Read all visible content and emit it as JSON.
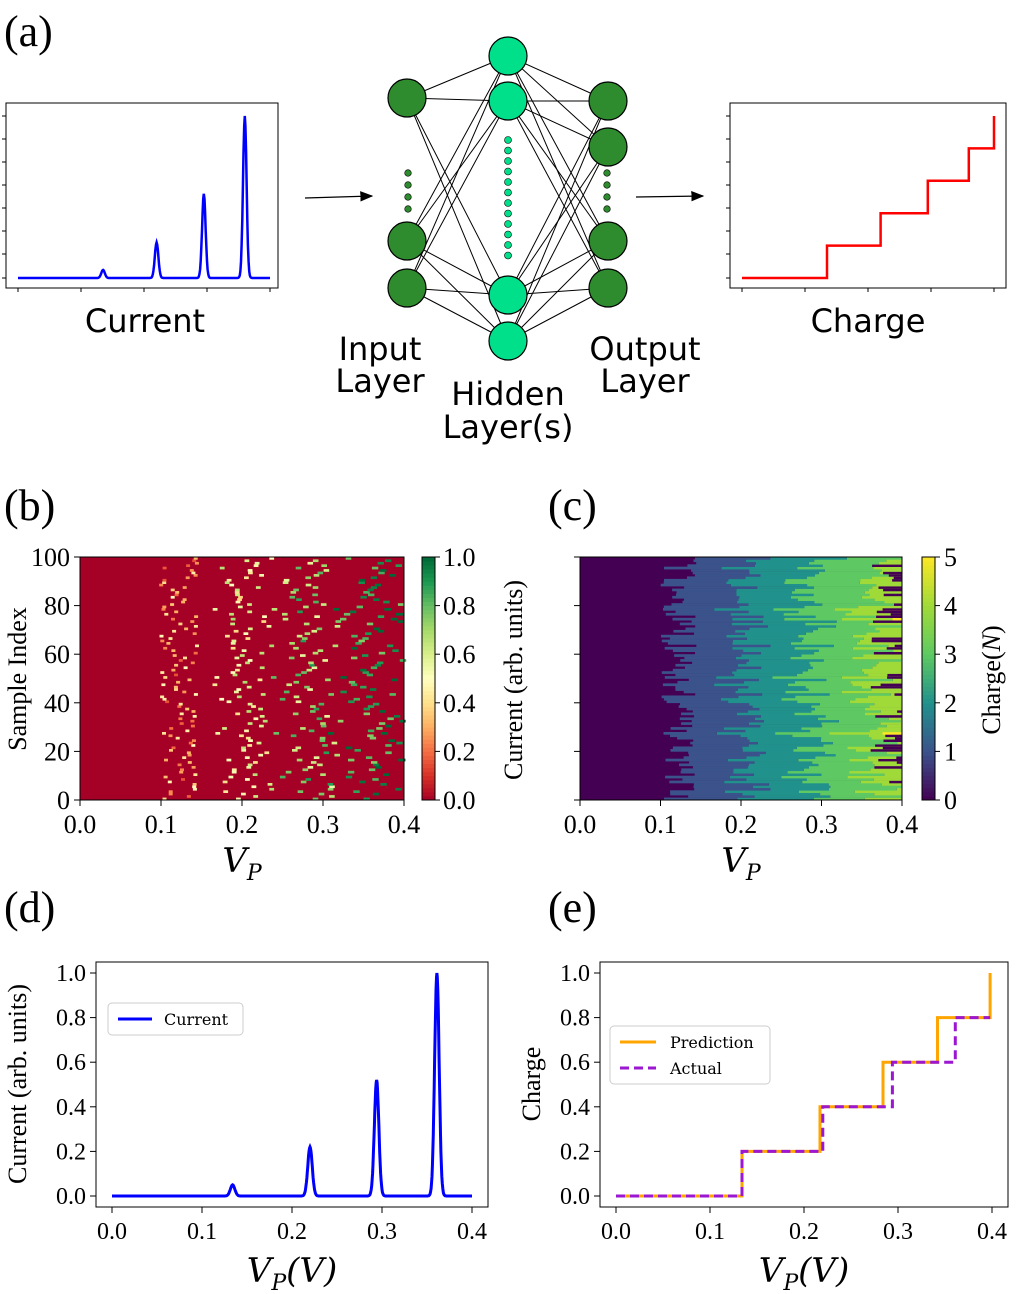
{
  "panel_a": {
    "label": "(a)",
    "input_caption": "Current",
    "output_caption": "Charge",
    "input_layer": [
      "Input",
      "Layer"
    ],
    "hidden_layer": [
      "Hidden",
      "Layer(s)"
    ],
    "output_layer": [
      "Output",
      "Layer"
    ],
    "colors": {
      "input_curve": "#0000ff",
      "output_curve": "#ff0000",
      "input_nodes": "#2e8b2e",
      "hidden_nodes": "#00e08a"
    }
  },
  "panel_b": {
    "label": "(b)"
  },
  "panel_c": {
    "label": "(c)"
  },
  "panel_d": {
    "label": "(d)"
  },
  "panel_e": {
    "label": "(e)"
  },
  "chart_data": [
    {
      "id": "a-input",
      "type": "line",
      "title": "",
      "xlabel": "Current",
      "peaks": [
        {
          "x": 0.135,
          "height": 0.05
        },
        {
          "x": 0.22,
          "height": 0.22
        },
        {
          "x": 0.295,
          "height": 0.52
        },
        {
          "x": 0.36,
          "height": 1.0
        }
      ]
    },
    {
      "id": "a-output",
      "type": "line",
      "title": "",
      "xlabel": "Charge",
      "steps_x": [
        0.135,
        0.22,
        0.295,
        0.36,
        0.4
      ],
      "steps_y": [
        0,
        0.2,
        0.4,
        0.6,
        0.8,
        1.0
      ]
    },
    {
      "id": "b",
      "type": "heatmap",
      "xlabel": "V",
      "xlabel_sub": "P",
      "ylabel": "Sample Index",
      "xlim": [
        0.0,
        0.4
      ],
      "ylim": [
        0,
        100
      ],
      "xticks": [
        "0.0",
        "0.1",
        "0.2",
        "0.3",
        "0.4"
      ],
      "yticks": [
        "0",
        "20",
        "40",
        "60",
        "80",
        "100"
      ],
      "colorbar_label": "Current (arb. units)",
      "colorbar_ticks": [
        "0.0",
        "0.2",
        "0.4",
        "0.6",
        "0.8",
        "1.0"
      ],
      "colormap": [
        "#a50026",
        "#d73027",
        "#f46d43",
        "#fdae61",
        "#fee08b",
        "#ffffbf",
        "#d9ef8b",
        "#a6d96a",
        "#66bd63",
        "#1a9850",
        "#006837"
      ],
      "n_samples": 100,
      "peak_count": 5,
      "first_peak_range": [
        0.1,
        0.14
      ]
    },
    {
      "id": "c",
      "type": "heatmap",
      "xlabel": "V",
      "xlabel_sub": "P",
      "xlim": [
        0.0,
        0.4
      ],
      "ylim": [
        0,
        100
      ],
      "xticks": [
        "0.0",
        "0.1",
        "0.2",
        "0.3",
        "0.4"
      ],
      "colorbar_label": "Charge",
      "colorbar_label_var": "N",
      "colorbar_ticks": [
        "0",
        "1",
        "2",
        "3",
        "4",
        "5"
      ],
      "colormap": [
        "#440154",
        "#3b528b",
        "#21918c",
        "#5ec962",
        "#a0da39",
        "#fde725"
      ],
      "n_samples": 100
    },
    {
      "id": "d",
      "type": "line",
      "xlabel": "V",
      "xlabel_sub": "P",
      "xlabel_unit": "(V)",
      "ylabel": "Current (arb. units)",
      "xlim": [
        0.0,
        0.4
      ],
      "ylim": [
        0.0,
        1.0
      ],
      "xticks": [
        "0.0",
        "0.1",
        "0.2",
        "0.3",
        "0.4"
      ],
      "yticks": [
        "0.0",
        "0.2",
        "0.4",
        "0.6",
        "0.8",
        "1.0"
      ],
      "series": [
        {
          "name": "Current",
          "color": "#0000ff",
          "peaks": [
            {
              "x": 0.134,
              "height": 0.05
            },
            {
              "x": 0.22,
              "height": 0.22
            },
            {
              "x": 0.294,
              "height": 0.52
            },
            {
              "x": 0.361,
              "height": 1.0
            }
          ],
          "peak_width": 0.0025
        }
      ],
      "legend": "upper-left"
    },
    {
      "id": "e",
      "type": "line",
      "xlabel": "V",
      "xlabel_sub": "P",
      "xlabel_unit": "(V)",
      "ylabel": "Charge",
      "xlim": [
        0.0,
        0.4
      ],
      "ylim": [
        0.0,
        1.0
      ],
      "xticks": [
        "0.0",
        "0.1",
        "0.2",
        "0.3",
        "0.4"
      ],
      "yticks": [
        "0.0",
        "0.2",
        "0.4",
        "0.6",
        "0.8",
        "1.0"
      ],
      "series": [
        {
          "name": "Prediction",
          "color": "#ffa500",
          "style": "solid",
          "x": [
            0.0,
            0.134,
            0.134,
            0.217,
            0.217,
            0.284,
            0.284,
            0.342,
            0.342,
            0.398,
            0.398
          ],
          "y": [
            0.0,
            0.0,
            0.2,
            0.2,
            0.4,
            0.4,
            0.6,
            0.6,
            0.8,
            0.8,
            1.0
          ]
        },
        {
          "name": "Actual",
          "color": "#9b17d1",
          "style": "dashed",
          "x": [
            0.0,
            0.134,
            0.134,
            0.22,
            0.22,
            0.294,
            0.294,
            0.361,
            0.361,
            0.398
          ],
          "y": [
            0.0,
            0.0,
            0.2,
            0.2,
            0.4,
            0.4,
            0.6,
            0.6,
            0.8,
            0.8
          ]
        }
      ],
      "legend": "upper-left"
    }
  ]
}
